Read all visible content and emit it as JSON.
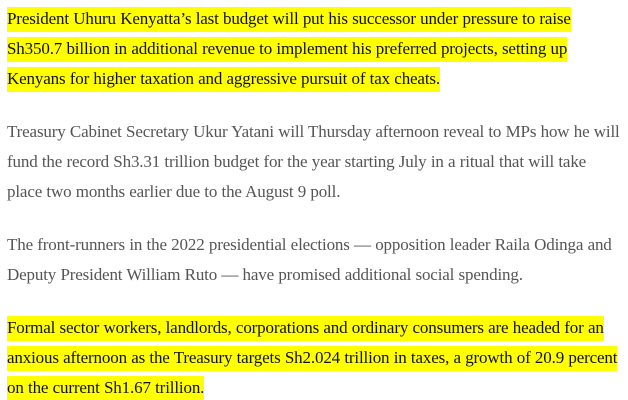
{
  "article": {
    "paragraphs": [
      {
        "text": "President Uhuru Kenyatta’s last budget will put his successor under pressure to raise Sh350.7 billion in additional revenue to implement his preferred projects, setting up Kenyans for higher taxation and aggressive pursuit of tax cheats.",
        "highlighted": true
      },
      {
        "text": "Treasury Cabinet Secretary Ukur Yatani will Thursday afternoon reveal to MPs how he will fund the record Sh3.31 trillion budget for the year starting July in a ritual that will take place two months earlier due to the August 9 poll.",
        "highlighted": false
      },
      {
        "text": "The front-runners in the 2022 presidential elections — opposition leader Raila Odinga and Deputy President William Ruto — have promised additional social spending.",
        "highlighted": false
      },
      {
        "text": "Formal sector workers, landlords, corporations and ordinary consumers are headed for an anxious afternoon as the Treasury targets Sh2.024 trillion in taxes, a growth of 20.9 percent on the current Sh1.67 trillion.",
        "highlighted": true
      }
    ]
  },
  "colors": {
    "highlight": "#ffff00",
    "highlighted_text": "#111111",
    "body_text": "#555555",
    "background": "#ffffff"
  }
}
